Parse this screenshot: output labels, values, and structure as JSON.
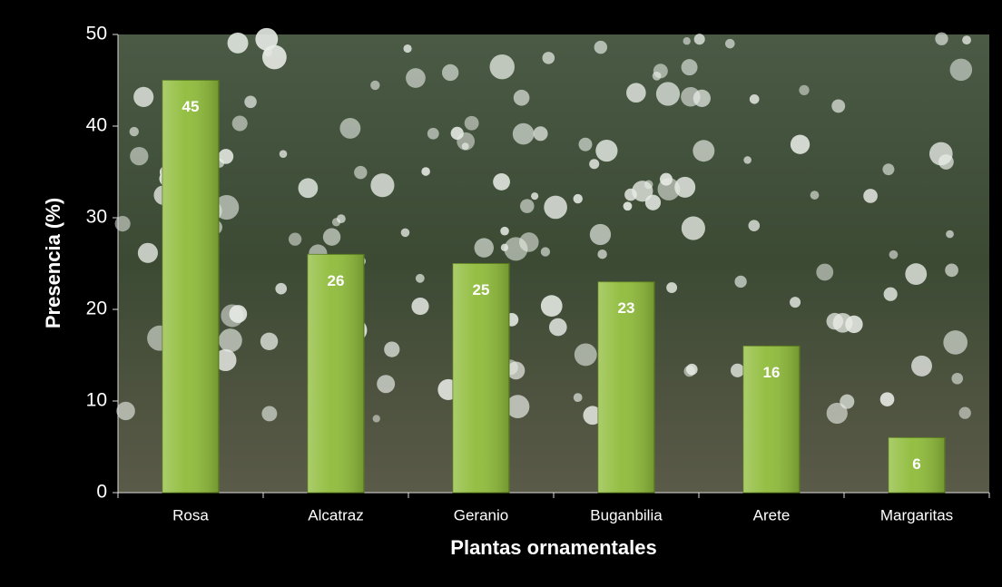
{
  "chart_data": {
    "type": "bar",
    "categories": [
      "Rosa",
      "Alcatraz",
      "Geranio",
      "Buganbilia",
      "Arete",
      "Margaritas"
    ],
    "values": [
      45,
      26,
      25,
      23,
      16,
      6
    ],
    "color": "#8fbc3a",
    "ylim": [
      0,
      50
    ],
    "yticks": [
      0,
      10,
      20,
      30,
      40,
      50
    ],
    "xlabel": "Plantas ornamentales",
    "ylabel": "Presencia (%)"
  }
}
